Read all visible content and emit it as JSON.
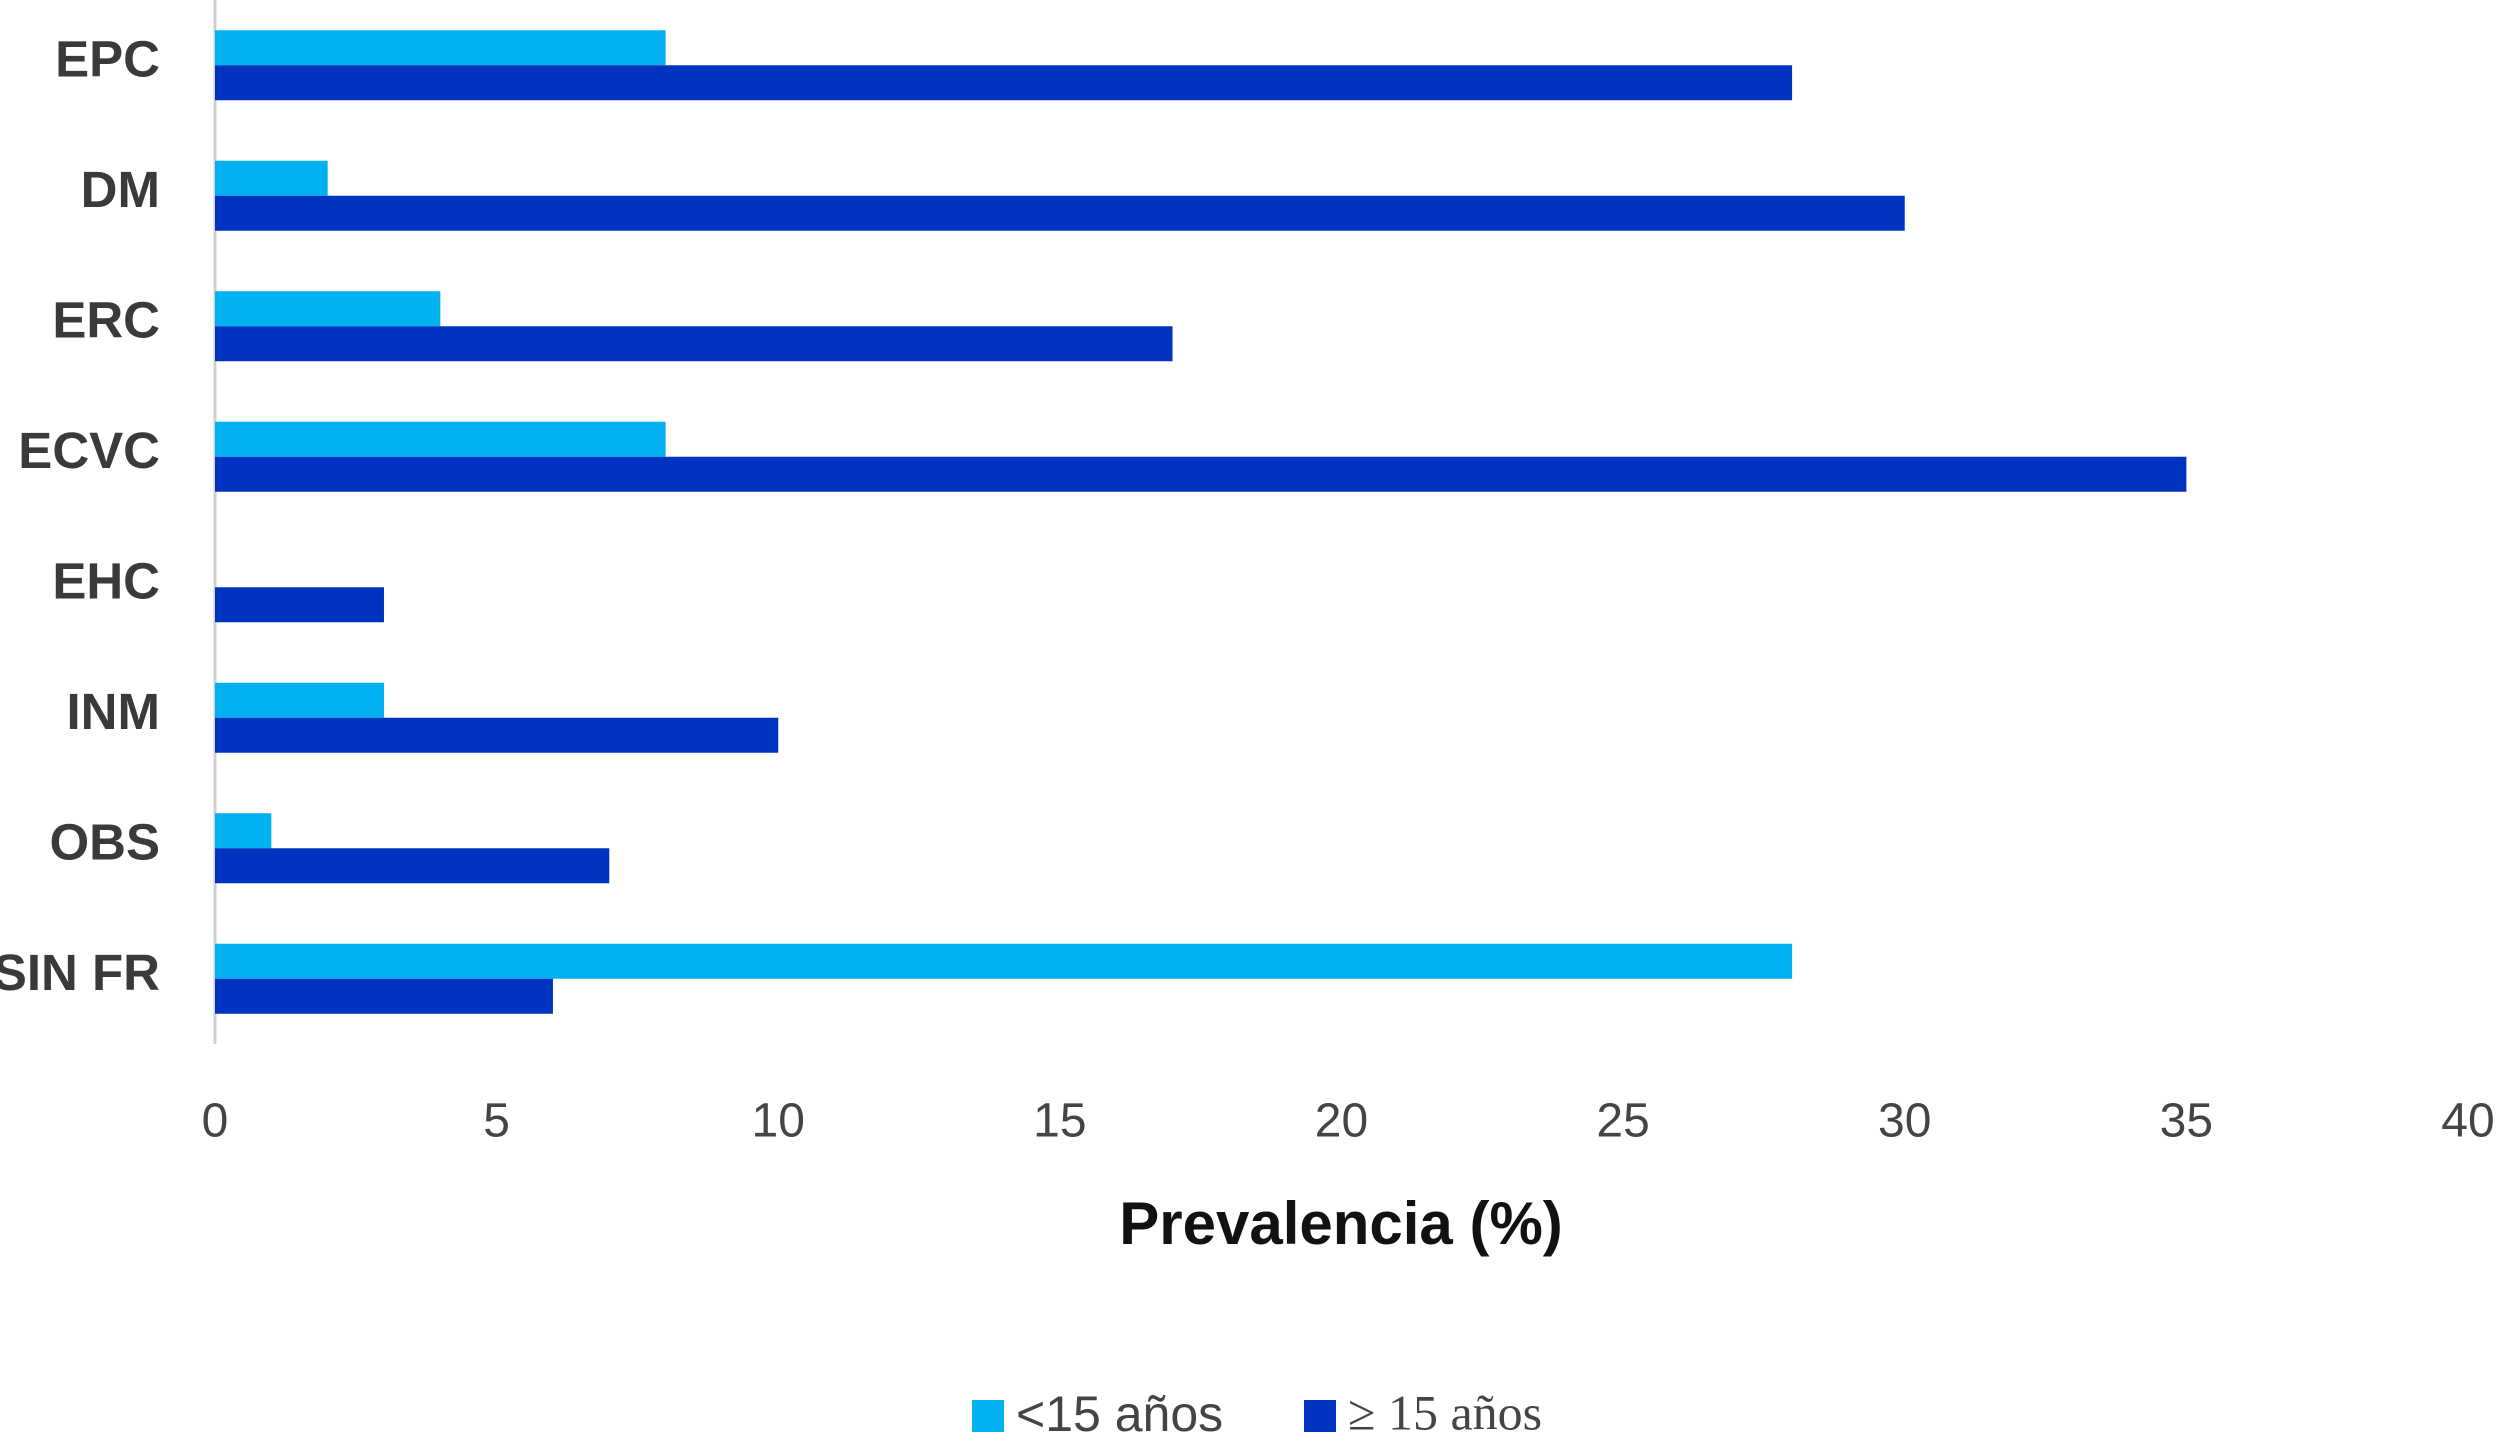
{
  "chart_data": {
    "type": "bar",
    "orientation": "horizontal",
    "categories": [
      "EPC",
      "DM",
      "ERC",
      "ECVC",
      "EHC",
      "INM",
      "OBS",
      "SIN FR"
    ],
    "series": [
      {
        "name": "<15 años",
        "color": "#00b0f0",
        "values": [
          8,
          2,
          4,
          8,
          0,
          3,
          1,
          28
        ]
      },
      {
        "name": "≥ 15 años",
        "color": "#0033c0",
        "values": [
          28,
          30,
          17,
          35,
          3,
          10,
          7,
          6
        ]
      }
    ],
    "xlabel": "Prevalencia (%)",
    "xlim": [
      0,
      40
    ],
    "xticks": [
      0,
      5,
      10,
      15,
      20,
      25,
      30,
      35,
      40
    ],
    "grid": false,
    "legend": "bottom"
  }
}
